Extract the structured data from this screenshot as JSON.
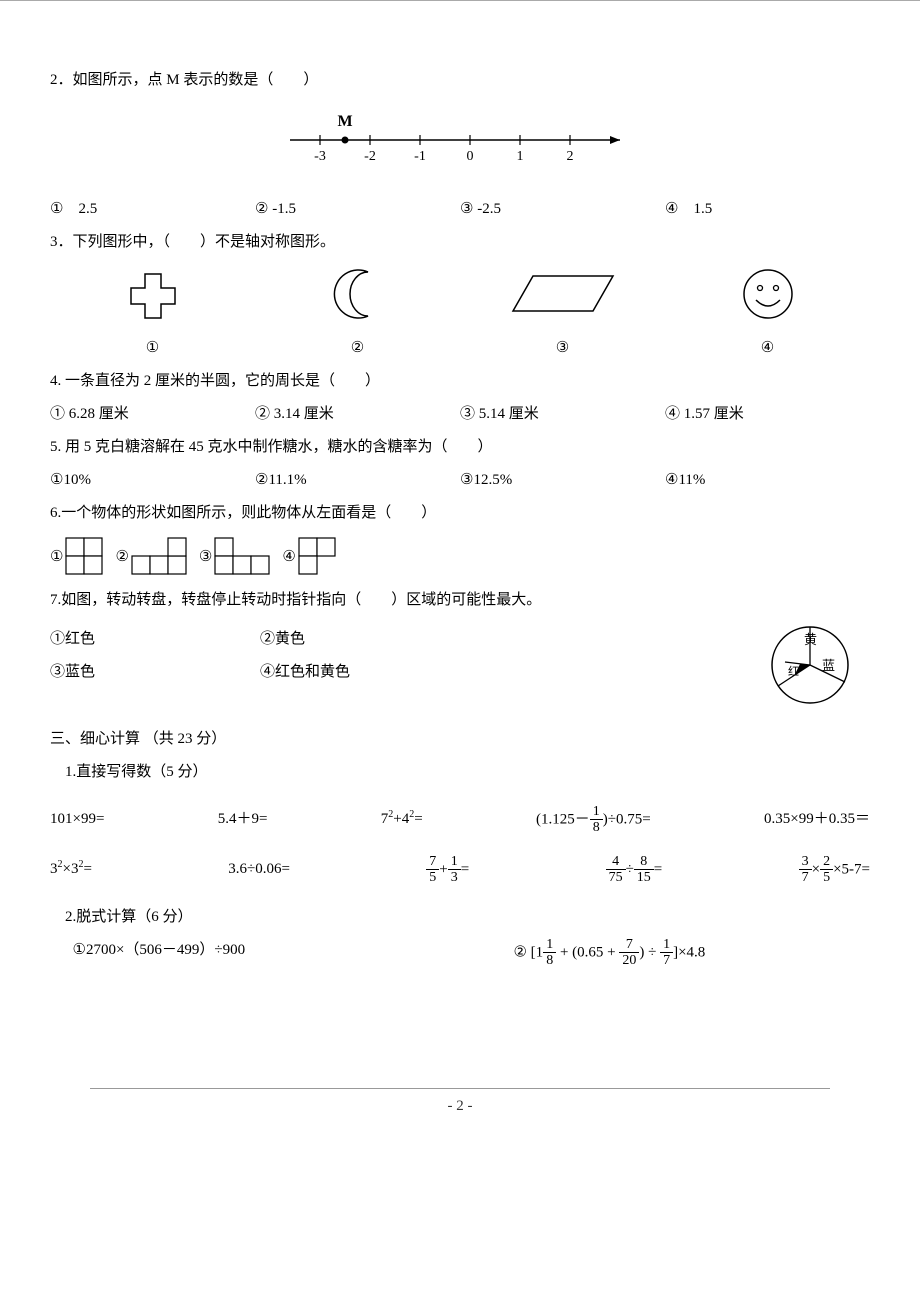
{
  "q2": {
    "text": "2．如图所示，点 M 表示的数是（　　）",
    "numberline": {
      "ticks": [
        -3,
        -2,
        -1,
        0,
        1,
        2
      ],
      "point_label": "M",
      "point_x": -2.5,
      "arrow": true
    },
    "options": {
      "a": "①　2.5",
      "b": "② -1.5",
      "c": "③ -2.5",
      "d": "④　1.5"
    }
  },
  "q3": {
    "text": "3．下列图形中，（　　）不是轴对称图形。",
    "labels": {
      "a": "①",
      "b": "②",
      "c": "③",
      "d": "④"
    },
    "shapes": {
      "cross": {
        "stroke": "#000",
        "fill": "none"
      },
      "crescent": {
        "stroke": "#000",
        "fill": "none"
      },
      "parallelogram": {
        "stroke": "#000",
        "fill": "none"
      },
      "smiley": {
        "stroke": "#000",
        "fill": "none"
      }
    }
  },
  "q4": {
    "text": "4. 一条直径为 2 厘米的半圆，它的周长是（　　）",
    "options": {
      "a": "① 6.28 厘米",
      "b": "② 3.14 厘米",
      "c": "③ 5.14 厘米",
      "d": "④ 1.57 厘米"
    }
  },
  "q5": {
    "text": "5. 用 5 克白糖溶解在 45 克水中制作糖水，糖水的含糖率为（　　）",
    "options": {
      "a": "①10%",
      "b": "②11.1%",
      "c": "③12.5%",
      "d": "④11%"
    }
  },
  "q6": {
    "text": "6.一个物体的形状如图所示，则此物体从左面看是（　　）",
    "options": {
      "a": "①",
      "b": "②",
      "c": "③",
      "d": "④"
    },
    "poly": {
      "cell_size": 18,
      "stroke": "#000",
      "fill": "#fff",
      "a": [
        [
          0,
          0
        ],
        [
          1,
          0
        ],
        [
          0,
          1
        ],
        [
          1,
          1
        ]
      ],
      "b": [
        [
          0,
          1
        ],
        [
          1,
          1
        ],
        [
          2,
          1
        ],
        [
          2,
          0
        ]
      ],
      "c": [
        [
          0,
          0
        ],
        [
          0,
          1
        ],
        [
          1,
          1
        ],
        [
          2,
          1
        ]
      ],
      "d": [
        [
          0,
          0
        ],
        [
          1,
          0
        ],
        [
          0,
          1
        ]
      ]
    }
  },
  "q7": {
    "text": "7.如图，转动转盘，转盘停止转动时指针指向（　　）区域的可能性最大。",
    "options": {
      "a": "①红色",
      "b": "②黄色",
      "c": "③蓝色",
      "d": "④红色和黄色"
    },
    "spinner": {
      "r": 38,
      "sectors": [
        {
          "label": "黄",
          "start": -60,
          "end": 60
        },
        {
          "label": "蓝",
          "start": 60,
          "end": 200
        },
        {
          "label": "红",
          "start": 200,
          "end": 300
        }
      ],
      "pointer_angle": 225
    }
  },
  "sec3": {
    "heading": "三、细心计算 （共 23 分）",
    "sub1": "1.直接写得数（5 分）",
    "row1": {
      "a": "101×99=",
      "b": "5.4＋9=",
      "c_pre": "7",
      "c_sup": "2",
      "c_mid": "+4",
      "c_sup2": "2",
      "c_post": "=",
      "d_pre": "(1.125－",
      "d_frac_n": "1",
      "d_frac_d": "8",
      "d_post": ")÷0.75=",
      "e": "0.35×99＋0.35＝"
    },
    "row2": {
      "a_pre": "3",
      "a_sup": "2",
      "a_mid": "×3",
      "a_sup2": "2",
      "a_post": "=",
      "b": "3.6÷0.06=",
      "c_f1n": "7",
      "c_f1d": "5",
      "c_plus": "+",
      "c_f2n": "1",
      "c_f2d": "3",
      "c_eq": "=",
      "d_f1n": "4",
      "d_f1d": "75",
      "d_div": "÷",
      "d_f2n": "8",
      "d_f2d": "15",
      "d_eq": "=",
      "e_f1n": "3",
      "e_f1d": "7",
      "e_x": "×",
      "e_f2n": "2",
      "e_f2d": "5",
      "e_post": "×5-7="
    },
    "sub2": "2.脱式计算（6 分）",
    "calc1": "①2700×（506－499）÷900",
    "calc2_pre": "② [1",
    "calc2_f1n": "1",
    "calc2_f1d": "8",
    "calc2_mid1": " + (0.65 + ",
    "calc2_f2n": "7",
    "calc2_f2d": "20",
    "calc2_mid2": ") ÷ ",
    "calc2_f3n": "1",
    "calc2_f3d": "7",
    "calc2_post": "]×4.8"
  },
  "footer": "- 2 -"
}
